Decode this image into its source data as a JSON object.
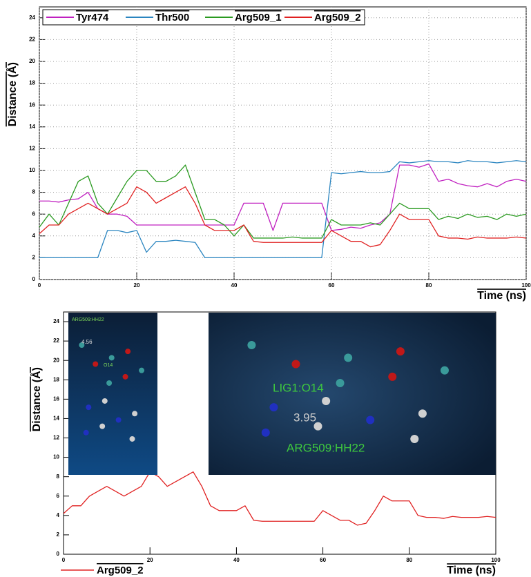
{
  "chart_data": [
    {
      "type": "line",
      "xlabel": "Time (ns)",
      "ylabel": "Distance (Å)",
      "x": [
        0,
        2,
        4,
        6,
        8,
        10,
        12,
        14,
        16,
        18,
        20,
        22,
        24,
        26,
        28,
        30,
        32,
        34,
        36,
        38,
        40,
        42,
        44,
        46,
        48,
        50,
        52,
        54,
        56,
        58,
        60,
        62,
        64,
        66,
        68,
        70,
        72,
        74,
        76,
        78,
        80,
        82,
        84,
        86,
        88,
        90,
        92,
        94,
        96,
        98,
        100
      ],
      "xlim": [
        0,
        100
      ],
      "xticks": [
        0,
        20,
        40,
        60,
        80,
        100
      ],
      "ylim": [
        0,
        25
      ],
      "yticks": [
        0,
        2,
        4,
        6,
        8,
        10,
        12,
        14,
        16,
        18,
        20,
        22,
        24
      ],
      "grid": true,
      "legend": "upper left",
      "series": [
        {
          "name": "Tyr474",
          "color": "#c020c0",
          "values": [
            7.2,
            7.2,
            7.1,
            7.3,
            7.4,
            8,
            6.5,
            6,
            6,
            5.8,
            5,
            5,
            5,
            5,
            5,
            5,
            5,
            5,
            5,
            5,
            5,
            7,
            7,
            7,
            4.5,
            7,
            7,
            7,
            7,
            7,
            4.5,
            4.6,
            4.8,
            4.7,
            5,
            5.2,
            6,
            10.5,
            10.5,
            10.3,
            10.6,
            9,
            9.2,
            8.8,
            8.6,
            8.5,
            8.8,
            8.5,
            9,
            9.2,
            9
          ]
        },
        {
          "name": "Thr500",
          "color": "#2a85c0",
          "values": [
            2,
            2,
            2,
            2,
            2,
            2,
            2,
            4.5,
            4.5,
            4.3,
            4.5,
            2.5,
            3.5,
            3.5,
            3.6,
            3.5,
            3.4,
            2,
            2,
            2,
            2,
            2,
            2,
            2,
            2,
            2,
            2,
            2,
            2,
            2,
            9.8,
            9.7,
            9.8,
            9.9,
            9.8,
            9.8,
            9.9,
            10.8,
            10.7,
            10.8,
            10.9,
            10.8,
            10.8,
            10.7,
            10.9,
            10.8,
            10.8,
            10.7,
            10.8,
            10.9,
            10.8
          ]
        },
        {
          "name": "Arg509_1",
          "color": "#2a9a20",
          "values": [
            4.8,
            6,
            5,
            7,
            9,
            9.5,
            7,
            6,
            7.5,
            9,
            10,
            10,
            9,
            9,
            9.5,
            10.5,
            8,
            5.5,
            5.5,
            5,
            4,
            5,
            3.8,
            3.8,
            3.8,
            3.8,
            3.9,
            3.8,
            3.8,
            3.8,
            5.5,
            5,
            5,
            5,
            5.2,
            5,
            6,
            7,
            6.5,
            6.5,
            6.5,
            5.5,
            5.8,
            5.6,
            6,
            5.7,
            5.8,
            5.5,
            6,
            5.8,
            6
          ]
        },
        {
          "name": "Arg509_2",
          "color": "#e02020",
          "values": [
            4.2,
            5,
            5,
            6,
            6.5,
            7,
            6.5,
            6,
            6.5,
            7,
            8.5,
            8,
            7,
            7.5,
            8,
            8.5,
            7,
            5,
            4.5,
            4.5,
            4.5,
            5,
            3.5,
            3.4,
            3.4,
            3.4,
            3.4,
            3.4,
            3.4,
            3.4,
            4.5,
            4,
            3.5,
            3.5,
            3,
            3.2,
            4.5,
            6,
            5.5,
            5.5,
            5.5,
            4,
            3.8,
            3.8,
            3.7,
            3.9,
            3.8,
            3.8,
            3.8,
            3.9,
            3.8
          ]
        }
      ]
    },
    {
      "type": "line",
      "xlabel": "Time (ns)",
      "ylabel": "Distance (Å)",
      "x": [
        0,
        2,
        4,
        6,
        8,
        10,
        12,
        14,
        16,
        18,
        20,
        22,
        24,
        26,
        28,
        30,
        32,
        34,
        36,
        38,
        40,
        42,
        44,
        46,
        48,
        50,
        52,
        54,
        56,
        58,
        60,
        62,
        64,
        66,
        68,
        70,
        72,
        74,
        76,
        78,
        80,
        82,
        84,
        86,
        88,
        90,
        92,
        94,
        96,
        98,
        100
      ],
      "xlim": [
        0,
        100
      ],
      "xticks": [
        0,
        20,
        40,
        60,
        80,
        100
      ],
      "ylim": [
        0,
        25
      ],
      "yticks": [
        0,
        2,
        4,
        6,
        8,
        10,
        12,
        14,
        16,
        18,
        20,
        22,
        24
      ],
      "grid": false,
      "legend": "lower left",
      "series": [
        {
          "name": "Arg509_2",
          "color": "#e02020",
          "values": [
            4.2,
            5,
            5,
            6,
            6.5,
            7,
            6.5,
            6,
            6.5,
            7,
            8.5,
            8,
            7,
            7.5,
            8,
            8.5,
            7,
            5,
            4.5,
            4.5,
            4.5,
            5,
            3.5,
            3.4,
            3.4,
            3.4,
            3.4,
            3.4,
            3.4,
            3.4,
            4.5,
            4,
            3.5,
            3.5,
            3,
            3.2,
            4.5,
            6,
            5.5,
            5.5,
            5.5,
            4,
            3.8,
            3.8,
            3.7,
            3.9,
            3.8,
            3.8,
            3.8,
            3.9,
            3.8
          ]
        }
      ],
      "insets": [
        {
          "labels": [
            "ARG509:HH22",
            "4.56",
            "O14"
          ]
        },
        {
          "labels": [
            "LIG1:O14",
            "3.95",
            "ARG509:HH22"
          ]
        }
      ]
    }
  ]
}
